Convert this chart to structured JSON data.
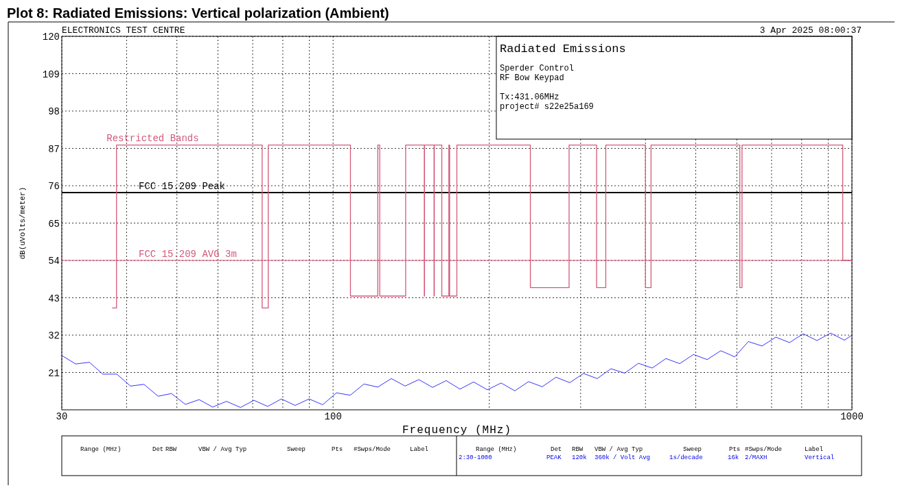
{
  "chart_data": {
    "type": "line",
    "title": "Plot 8: Radiated Emissions: Vertical polarization (Ambient)",
    "xlabel": "Frequency (MHz)",
    "ylabel": "dB(uVolts/meter)",
    "log": "x",
    "grid": true,
    "legend": false,
    "xlim": [
      30,
      1000
    ],
    "xticks": [
      30,
      {
        "value": 40,
        "label": null
      },
      {
        "value": 50,
        "label": null
      },
      {
        "value": 60,
        "label": null
      },
      {
        "value": 70,
        "label": null
      },
      {
        "value": 80,
        "label": null
      },
      {
        "value": 90,
        "label": null
      },
      100,
      {
        "value": 200,
        "label": null
      },
      {
        "value": 300,
        "label": null
      },
      {
        "value": 400,
        "label": null
      },
      {
        "value": 500,
        "label": null
      },
      {
        "value": 600,
        "label": null
      },
      {
        "value": 700,
        "label": null
      },
      {
        "value": 800,
        "label": null
      },
      {
        "value": 900,
        "label": null
      },
      1000
    ],
    "ylim": [
      10,
      120
    ],
    "yticks": [
      21,
      32,
      43,
      54,
      65,
      76,
      87,
      98,
      109,
      120
    ],
    "ref_lines": [
      {
        "axis": "y",
        "value": 74,
        "label": "FCC 15.209 Peak",
        "color": "#000000"
      },
      {
        "axis": "y",
        "value": 54,
        "label": "FCC 15.209 AVG 3m",
        "color": "#d4587a"
      }
    ],
    "series": [
      {
        "type": "step",
        "name": "Restricted Bands",
        "color": "#d4587a",
        "x": [
          37.5,
          38.25,
          73,
          75,
          108,
          121.94,
          123,
          138,
          149.9,
          150.05,
          156.52,
          156.7,
          162.01,
          167.17,
          167.72,
          173.2,
          240,
          285,
          322,
          335.4,
          399.9,
          410,
          608,
          614,
          960,
          1000
        ],
        "values": [
          40,
          88,
          40,
          88,
          43.5,
          88,
          43.5,
          88,
          43.5,
          88,
          43.5,
          88,
          43.5,
          88,
          43.5,
          88,
          46,
          88,
          46,
          88,
          46,
          88,
          46,
          88,
          54,
          54
        ]
      },
      {
        "color": "#0000ff",
        "x": [
          30,
          31.9,
          33.9,
          36.0,
          38.3,
          40.7,
          43.2,
          46.0,
          48.8,
          51.9,
          55.2,
          58.6,
          62.3,
          66.3,
          70.4,
          74.8,
          79.5,
          84.5,
          89.9,
          95.5,
          101.5,
          107.9,
          114.7,
          121.9,
          129.5,
          137.7,
          146.3,
          155.5,
          165.2,
          175.6,
          186.6,
          198.3,
          210.8,
          224.0,
          238.1,
          253.0,
          268.9,
          285.8,
          303.9,
          322.8,
          343.2,
          364.8,
          387.8,
          412.2,
          438.0,
          465.6,
          495.0,
          525.9,
          558.9,
          594.3,
          631.5,
          671.1,
          713.4,
          758.1,
          805.5,
          856.2,
          909.9,
          967.0,
          1000
        ],
        "values": [
          26,
          23.5,
          24,
          20.5,
          20.5,
          17,
          17.5,
          14,
          14.8,
          11.6,
          13,
          10.8,
          12.5,
          10.7,
          12.8,
          11,
          13.2,
          11.3,
          13.2,
          11.5,
          15,
          14.3,
          17.6,
          16.7,
          19.2,
          17,
          18.9,
          16.6,
          18.6,
          16.1,
          18.2,
          15.9,
          17.9,
          15.6,
          18.3,
          16.8,
          19.6,
          18,
          20.7,
          19.2,
          22.1,
          20.8,
          23.7,
          22.3,
          25.1,
          23.6,
          26.3,
          24.8,
          27.4,
          25.6,
          30.1,
          28.8,
          31.4,
          29.8,
          32.4,
          30.4,
          32.6,
          30.5,
          32
        ]
      }
    ],
    "annotations": [
      "ELECTRONICS TEST CENTRE",
      "3 Apr 2025   08:00:37",
      "Radiated Emissions",
      "Sperder Control",
      "RF Bow Keypad",
      "Tx:431.06MHz",
      "project# s22e25a169",
      "Range (MHz)",
      "Det",
      "RBW",
      "VBW / Avg Typ",
      "Sweep",
      "Pts",
      "#Swps/Mode",
      "Label",
      "Range (MHz)",
      "Det",
      "RBW",
      "VBW / Avg Typ",
      "Sweep",
      "Pts",
      "#Swps/Mode",
      "Label",
      "2:30-1000",
      "PEAK",
      "120k",
      "360k / Volt Avg",
      "1s/decade",
      "16k",
      "2/MAXH",
      "Vertical"
    ]
  }
}
